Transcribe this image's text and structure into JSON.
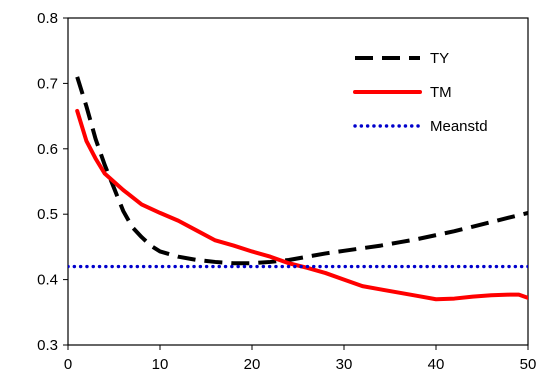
{
  "chart_data": {
    "type": "line",
    "title": "",
    "xlabel": "",
    "ylabel": "",
    "xlim": [
      0,
      50
    ],
    "ylim": [
      0.3,
      0.8
    ],
    "x_ticks": [
      0,
      10,
      20,
      30,
      40,
      50
    ],
    "y_ticks": [
      0.3,
      0.4,
      0.5,
      0.6,
      0.7,
      0.8
    ],
    "x_tick_labels": [
      "0",
      "10",
      "20",
      "30",
      "40",
      "50"
    ],
    "y_tick_labels": [
      "0.3",
      "0.4",
      "0.5",
      "0.6",
      "0.7",
      "0.8"
    ],
    "grid": false,
    "legend_position": "top-right",
    "series": [
      {
        "name": "TY",
        "color": "#000000",
        "style": "dashed",
        "x": [
          1,
          2,
          3,
          4,
          5,
          6,
          7,
          8,
          9,
          10,
          12,
          14,
          16,
          18,
          20,
          22,
          24,
          26,
          28,
          30,
          32,
          34,
          36,
          38,
          40,
          42,
          44,
          46,
          48,
          50
        ],
        "y": [
          0.71,
          0.665,
          0.615,
          0.575,
          0.54,
          0.505,
          0.48,
          0.465,
          0.452,
          0.443,
          0.435,
          0.43,
          0.427,
          0.425,
          0.425,
          0.427,
          0.43,
          0.435,
          0.44,
          0.444,
          0.448,
          0.452,
          0.457,
          0.462,
          0.468,
          0.474,
          0.481,
          0.488,
          0.495,
          0.502
        ]
      },
      {
        "name": "TM",
        "color": "#ff0000",
        "style": "solid",
        "x": [
          1,
          2,
          3,
          4,
          6,
          8,
          10,
          12,
          14,
          16,
          18,
          20,
          22,
          24,
          26,
          28,
          30,
          32,
          34,
          36,
          38,
          40,
          42,
          44,
          46,
          48,
          49,
          50
        ],
        "y": [
          0.658,
          0.612,
          0.585,
          0.562,
          0.537,
          0.515,
          0.502,
          0.49,
          0.475,
          0.46,
          0.452,
          0.443,
          0.435,
          0.425,
          0.418,
          0.41,
          0.4,
          0.39,
          0.385,
          0.38,
          0.375,
          0.37,
          0.371,
          0.374,
          0.376,
          0.377,
          0.377,
          0.372
        ]
      },
      {
        "name": "Meanstd",
        "color": "#0000cc",
        "style": "dotted",
        "x": [
          0,
          50
        ],
        "y": [
          0.42,
          0.42
        ]
      }
    ]
  }
}
